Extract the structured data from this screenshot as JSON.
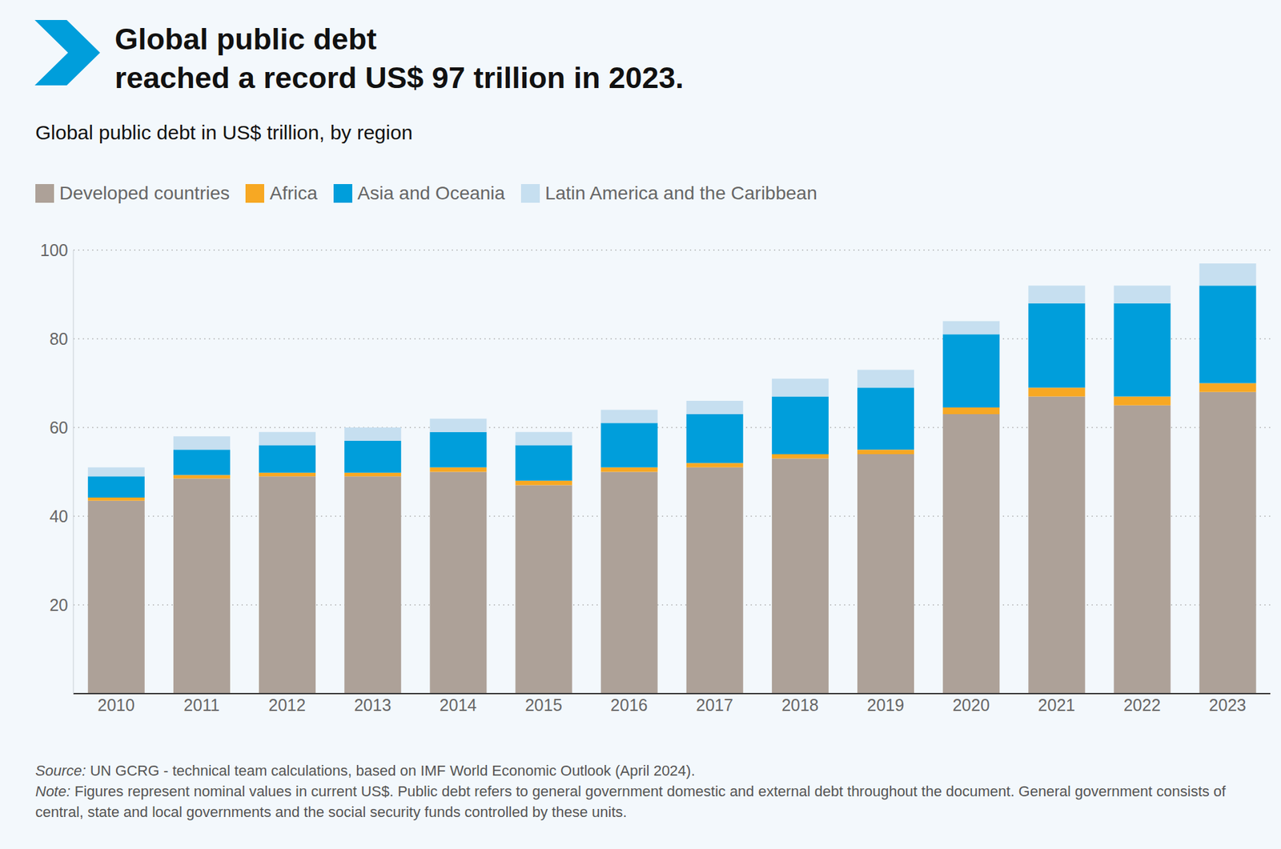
{
  "chart_data": {
    "type": "bar",
    "title": "Global public debt\nreached a record US$ 97 trillion in 2023.",
    "subtitle": "Global public debt in US$ trillion, by region",
    "categories": [
      "2010",
      "2011",
      "2012",
      "2013",
      "2014",
      "2015",
      "2016",
      "2017",
      "2018",
      "2019",
      "2020",
      "2021",
      "2022",
      "2023"
    ],
    "series": [
      {
        "name": "Developed countries",
        "color": "#ada198",
        "values": [
          43.5,
          48.5,
          49,
          49,
          50,
          47,
          50,
          51,
          53,
          54,
          63,
          67,
          65,
          68
        ]
      },
      {
        "name": "Africa",
        "color": "#f7a823",
        "values": [
          0.7,
          0.8,
          0.8,
          0.8,
          1,
          1,
          1,
          1,
          1,
          1,
          1.5,
          2,
          2,
          2
        ]
      },
      {
        "name": "Asia and Oceania",
        "color": "#009edb",
        "values": [
          4.8,
          5.7,
          6.2,
          7.2,
          8,
          8,
          10,
          11,
          13,
          14,
          16.5,
          19,
          21,
          22
        ]
      },
      {
        "name": "Latin America and the Caribbean",
        "color": "#c6dff0",
        "values": [
          2,
          3,
          3,
          3,
          3,
          3,
          3,
          3,
          4,
          4,
          3,
          4,
          4,
          5
        ]
      }
    ],
    "stacked": true,
    "grid": true,
    "legend": "top-left",
    "ylim": [
      0,
      100
    ],
    "yticks": [
      20,
      40,
      60,
      80,
      100
    ],
    "annotations": [
      "Source: UN GCRG - technical team calculations, based on IMF World Economic Outlook (April 2024).",
      "Note: Figures represent nominal values in current US$. Public debt refers to general government domestic and external debt throughout the document. General government consists of central, state and local governments and the social security funds controlled by these units."
    ]
  }
}
